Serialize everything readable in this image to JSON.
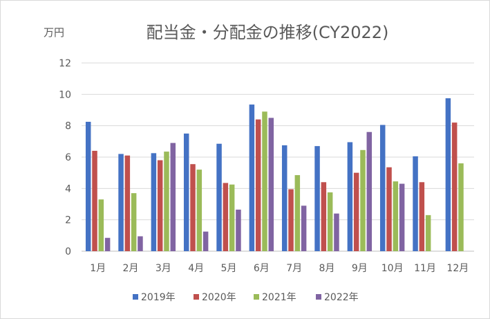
{
  "chart_data": {
    "type": "bar",
    "title": "配当金・分配金の推移(CY2022)",
    "unit_label": "万円",
    "categories": [
      "1月",
      "2月",
      "3月",
      "4月",
      "5月",
      "6月",
      "7月",
      "8月",
      "9月",
      "10月",
      "11月",
      "12月"
    ],
    "y_ticks": [
      "0",
      "2",
      "4",
      "6",
      "8",
      "10",
      "12"
    ],
    "ylim": [
      0,
      12
    ],
    "grid": true,
    "legend_position": "bottom",
    "series": [
      {
        "name": "2019年",
        "color": "#4472c4",
        "values": [
          8.25,
          6.2,
          6.25,
          7.5,
          6.85,
          9.35,
          6.75,
          6.7,
          6.95,
          8.05,
          6.05,
          9.75
        ]
      },
      {
        "name": "2020年",
        "color": "#c0504d",
        "values": [
          6.4,
          6.1,
          5.8,
          5.55,
          4.35,
          8.4,
          3.95,
          4.4,
          5.0,
          5.35,
          4.4,
          8.2
        ]
      },
      {
        "name": "2021年",
        "color": "#9bbb59",
        "values": [
          3.3,
          3.7,
          6.35,
          5.2,
          4.25,
          8.9,
          4.85,
          3.75,
          6.45,
          4.45,
          2.3,
          5.6
        ]
      },
      {
        "name": "2022年",
        "color": "#8064a2",
        "values": [
          0.85,
          0.95,
          6.9,
          1.25,
          2.65,
          8.5,
          2.9,
          2.4,
          7.6,
          4.3,
          null,
          null
        ]
      }
    ]
  }
}
